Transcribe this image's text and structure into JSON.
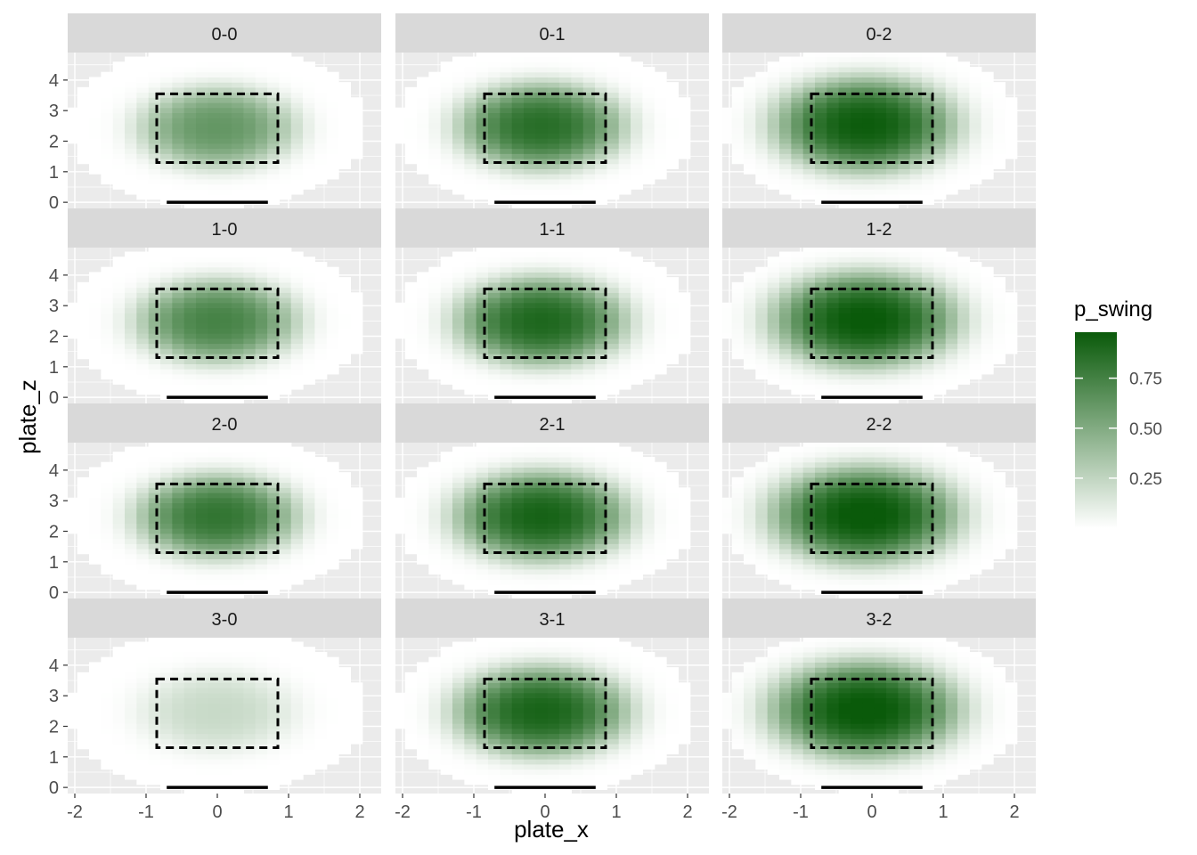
{
  "chart_data": {
    "type": "heatmap",
    "facet_by": "count",
    "facets": [
      {
        "label": "0-0",
        "peak": 0.62,
        "center_x": 0.0,
        "center_z": 2.45,
        "sigma_x": 0.78,
        "sigma_z": 0.95
      },
      {
        "label": "0-1",
        "peak": 0.86,
        "center_x": -0.05,
        "center_z": 2.5,
        "sigma_x": 0.82,
        "sigma_z": 1.0
      },
      {
        "label": "0-2",
        "peak": 0.97,
        "center_x": -0.1,
        "center_z": 2.55,
        "sigma_x": 0.9,
        "sigma_z": 1.1
      },
      {
        "label": "1-0",
        "peak": 0.74,
        "center_x": 0.0,
        "center_z": 2.5,
        "sigma_x": 0.8,
        "sigma_z": 0.97
      },
      {
        "label": "1-1",
        "peak": 0.9,
        "center_x": -0.05,
        "center_z": 2.5,
        "sigma_x": 0.84,
        "sigma_z": 1.02
      },
      {
        "label": "1-2",
        "peak": 0.99,
        "center_x": -0.1,
        "center_z": 2.55,
        "sigma_x": 0.92,
        "sigma_z": 1.1
      },
      {
        "label": "2-0",
        "peak": 0.82,
        "center_x": 0.0,
        "center_z": 2.5,
        "sigma_x": 0.8,
        "sigma_z": 0.97
      },
      {
        "label": "2-1",
        "peak": 0.93,
        "center_x": -0.05,
        "center_z": 2.5,
        "sigma_x": 0.86,
        "sigma_z": 1.04
      },
      {
        "label": "2-2",
        "peak": 1.0,
        "center_x": -0.1,
        "center_z": 2.55,
        "sigma_x": 0.93,
        "sigma_z": 1.12
      },
      {
        "label": "3-0",
        "peak": 0.22,
        "center_x": 0.0,
        "center_z": 2.5,
        "sigma_x": 0.78,
        "sigma_z": 0.95
      },
      {
        "label": "3-1",
        "peak": 0.92,
        "center_x": -0.05,
        "center_z": 2.5,
        "sigma_x": 0.86,
        "sigma_z": 1.04
      },
      {
        "label": "3-2",
        "peak": 1.0,
        "center_x": -0.1,
        "center_z": 2.55,
        "sigma_x": 0.94,
        "sigma_z": 1.13
      }
    ],
    "xlabel": "plate_x",
    "ylabel": "plate_z",
    "xlim": [
      -2.1,
      2.3
    ],
    "ylim": [
      -0.2,
      4.9
    ],
    "x_ticks": [
      -2,
      -1,
      0,
      1,
      2
    ],
    "y_ticks": [
      0,
      1,
      2,
      3,
      4
    ],
    "strike_zone": {
      "x_min": -0.85,
      "x_max": 0.85,
      "z_min": 1.3,
      "z_max": 3.55,
      "line_style": "dashed"
    },
    "home_plate": {
      "x_min": -0.71,
      "x_max": 0.71,
      "z": 0.0
    },
    "legend": {
      "title": "p_swing",
      "ticks": [
        0.25,
        0.5,
        0.75
      ],
      "range": [
        0.0,
        0.98
      ],
      "position": "right"
    },
    "colors": {
      "low": "#ffffff",
      "high": "#0a5a0a",
      "panel_background": "#ebebeb",
      "strip_background": "#d9d9d9",
      "grid": "#ffffff"
    },
    "grid": true
  }
}
